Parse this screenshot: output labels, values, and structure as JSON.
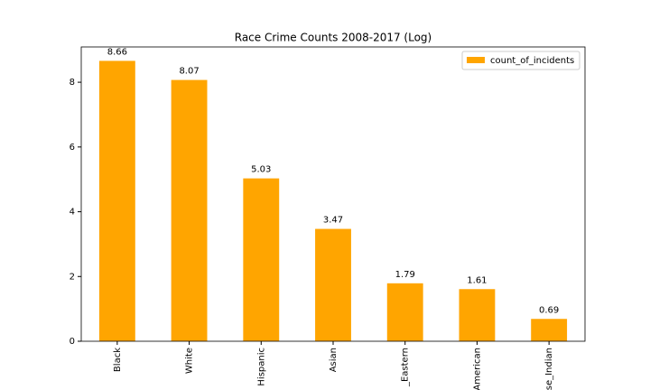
{
  "chart_data": {
    "type": "bar",
    "title": "Race Crime Counts 2008-2017 (Log)",
    "categories": [
      "Black",
      "White",
      "Hispanic",
      "Asian",
      "_Eastern",
      "American",
      "se_Indian"
    ],
    "series": [
      {
        "name": "count_of_incidents",
        "color": "#ffa500",
        "values": [
          8.66,
          8.07,
          5.03,
          3.47,
          1.79,
          1.61,
          0.69
        ]
      }
    ],
    "ylim": [
      0,
      9.09
    ],
    "yticks": [
      0,
      2,
      4,
      6,
      8
    ],
    "grid": false,
    "legend": "upper right"
  }
}
